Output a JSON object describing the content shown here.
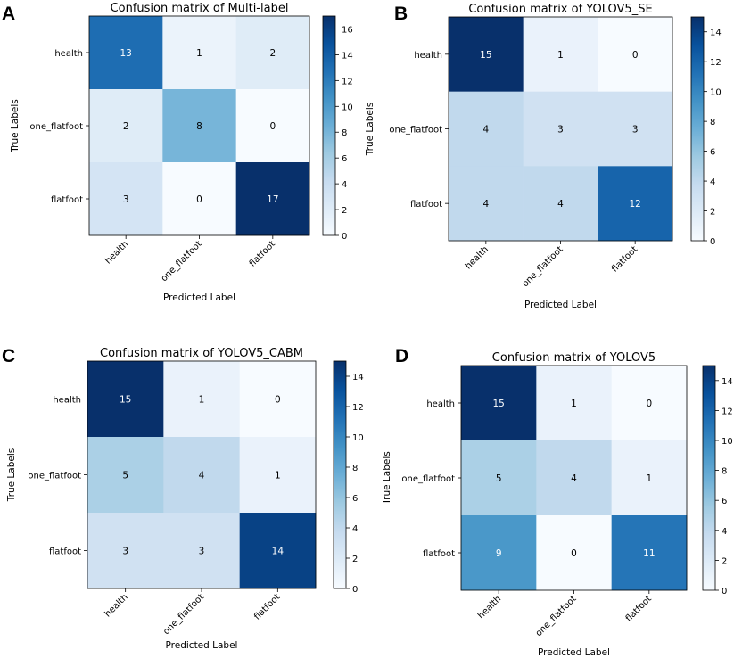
{
  "chart_data": [
    {
      "type": "heatmap",
      "panel": "A",
      "title": "Confusion matrix of Multi-label",
      "xlabel": "Predicted Label",
      "ylabel": "True Labels",
      "x_categories": [
        "health",
        "one_flatfoot",
        "flatfoot"
      ],
      "y_categories": [
        "health",
        "one_flatfoot",
        "flatfoot"
      ],
      "values": [
        [
          13,
          1,
          2
        ],
        [
          2,
          8,
          0
        ],
        [
          3,
          0,
          17
        ]
      ],
      "vmin": 0,
      "vmax": 17,
      "colorbar_ticks": [
        0,
        2,
        4,
        6,
        8,
        10,
        12,
        14,
        16
      ],
      "colormap": "Blues"
    },
    {
      "type": "heatmap",
      "panel": "B",
      "title": "Confusion matrix of YOLOV5_SE",
      "xlabel": "Predicted Label",
      "ylabel": "True Labels",
      "x_categories": [
        "health",
        "one_flatfoot",
        "flatfoot"
      ],
      "y_categories": [
        "health",
        "one_flatfoot",
        "flatfoot"
      ],
      "values": [
        [
          15,
          1,
          0
        ],
        [
          4,
          3,
          3
        ],
        [
          4,
          4,
          12
        ]
      ],
      "vmin": 0,
      "vmax": 15,
      "colorbar_ticks": [
        0,
        2,
        4,
        6,
        8,
        10,
        12,
        14
      ],
      "colormap": "Blues"
    },
    {
      "type": "heatmap",
      "panel": "C",
      "title": "Confusion matrix of YOLOV5_CABM",
      "xlabel": "Predicted Label",
      "ylabel": "True Labels",
      "x_categories": [
        "health",
        "one_flatfoot",
        "flatfoot"
      ],
      "y_categories": [
        "health",
        "one_flatfoot",
        "flatfoot"
      ],
      "values": [
        [
          15,
          1,
          0
        ],
        [
          5,
          4,
          1
        ],
        [
          3,
          3,
          14
        ]
      ],
      "vmin": 0,
      "vmax": 15,
      "colorbar_ticks": [
        0,
        2,
        4,
        6,
        8,
        10,
        12,
        14
      ],
      "colormap": "Blues"
    },
    {
      "type": "heatmap",
      "panel": "D",
      "title": "Confusion matrix of YOLOV5",
      "xlabel": "Predicted Label",
      "ylabel": "True Labels",
      "x_categories": [
        "health",
        "one_flatfoot",
        "flatfoot"
      ],
      "y_categories": [
        "health",
        "one_flatfoot",
        "flatfoot"
      ],
      "values": [
        [
          15,
          1,
          0
        ],
        [
          5,
          4,
          1
        ],
        [
          9,
          0,
          11
        ]
      ],
      "vmin": 0,
      "vmax": 15,
      "colorbar_ticks": [
        0,
        2,
        4,
        6,
        8,
        10,
        12,
        14
      ],
      "colormap": "Blues"
    }
  ]
}
